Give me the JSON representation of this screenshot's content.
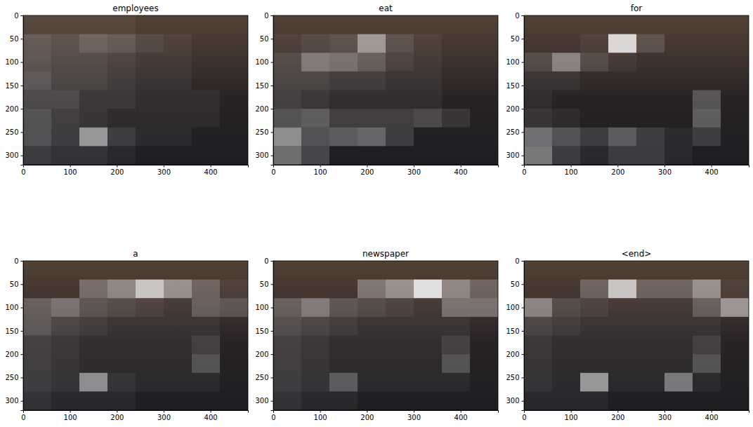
{
  "chart_data": [
    {
      "type": "heatmap",
      "title": "employees",
      "xlim": [
        0,
        480
      ],
      "ylim": [
        320,
        0
      ],
      "xticks": [
        0,
        100,
        200,
        300,
        400
      ],
      "yticks": [
        0,
        50,
        100,
        150,
        200,
        250,
        300
      ],
      "cells": [
        [
          0.1,
          0.1,
          0.1,
          0.1,
          0.05,
          0.05,
          0.05,
          0.05
        ],
        [
          0.25,
          0.2,
          0.3,
          0.25,
          0.15,
          0.1,
          0.05,
          0.05
        ],
        [
          0.25,
          0.2,
          0.2,
          0.15,
          0.1,
          0.1,
          0.05,
          0.05
        ],
        [
          0.3,
          0.2,
          0.2,
          0.15,
          0.1,
          0.1,
          0.05,
          0.05
        ],
        [
          0.25,
          0.25,
          0.15,
          0.15,
          0.1,
          0.1,
          0.1,
          0.05
        ],
        [
          0.3,
          0.2,
          0.15,
          0.1,
          0.1,
          0.1,
          0.1,
          0.05
        ],
        [
          0.3,
          0.2,
          0.65,
          0.2,
          0.1,
          0.1,
          0.05,
          0.05
        ],
        [
          0.2,
          0.15,
          0.15,
          0.1,
          0.05,
          0.05,
          0.05,
          0.05
        ]
      ]
    },
    {
      "type": "heatmap",
      "title": "eat",
      "xlim": [
        0,
        480
      ],
      "ylim": [
        320,
        0
      ],
      "xticks": [
        0,
        100,
        200,
        300,
        400
      ],
      "yticks": [
        0,
        50,
        100,
        150,
        200,
        250,
        300
      ],
      "cells": [
        [
          0.05,
          0.05,
          0.05,
          0.05,
          0.05,
          0.05,
          0.05,
          0.05
        ],
        [
          0.1,
          0.15,
          0.2,
          0.6,
          0.2,
          0.1,
          0.05,
          0.05
        ],
        [
          0.2,
          0.45,
          0.4,
          0.3,
          0.15,
          0.1,
          0.05,
          0.05
        ],
        [
          0.2,
          0.2,
          0.15,
          0.15,
          0.1,
          0.1,
          0.05,
          0.05
        ],
        [
          0.2,
          0.15,
          0.1,
          0.1,
          0.1,
          0.1,
          0.05,
          0.05
        ],
        [
          0.3,
          0.35,
          0.2,
          0.2,
          0.2,
          0.25,
          0.15,
          0.05
        ],
        [
          0.6,
          0.3,
          0.35,
          0.4,
          0.2,
          0.05,
          0.05,
          0.05
        ],
        [
          0.45,
          0.25,
          0.05,
          0.05,
          0.05,
          0.05,
          0.05,
          0.05
        ]
      ]
    },
    {
      "type": "heatmap",
      "title": "for",
      "xlim": [
        0,
        480
      ],
      "ylim": [
        320,
        0
      ],
      "xticks": [
        0,
        100,
        200,
        300,
        400
      ],
      "yticks": [
        0,
        50,
        100,
        150,
        200,
        250,
        300
      ],
      "cells": [
        [
          0.05,
          0.05,
          0.05,
          0.05,
          0.05,
          0.05,
          0.05,
          0.05
        ],
        [
          0.05,
          0.05,
          0.1,
          0.95,
          0.2,
          0.05,
          0.05,
          0.05
        ],
        [
          0.2,
          0.5,
          0.2,
          0.1,
          0.05,
          0.05,
          0.05,
          0.05
        ],
        [
          0.1,
          0.1,
          0.05,
          0.05,
          0.05,
          0.05,
          0.05,
          0.05
        ],
        [
          0.1,
          0.05,
          0.05,
          0.05,
          0.05,
          0.05,
          0.3,
          0.05
        ],
        [
          0.15,
          0.1,
          0.05,
          0.05,
          0.05,
          0.05,
          0.35,
          0.05
        ],
        [
          0.45,
          0.3,
          0.2,
          0.35,
          0.2,
          0.1,
          0.2,
          0.05
        ],
        [
          0.5,
          0.2,
          0.1,
          0.2,
          0.2,
          0.1,
          0.05,
          0.05
        ]
      ]
    },
    {
      "type": "heatmap",
      "title": "a",
      "xlim": [
        0,
        480
      ],
      "ylim": [
        320,
        0
      ],
      "xticks": [
        0,
        100,
        200,
        300,
        400
      ],
      "yticks": [
        0,
        50,
        100,
        150,
        200,
        250,
        300
      ],
      "cells": [
        [
          0.05,
          0.05,
          0.05,
          0.05,
          0.05,
          0.05,
          0.05,
          0.05
        ],
        [
          0.05,
          0.05,
          0.35,
          0.5,
          0.85,
          0.55,
          0.3,
          0.1
        ],
        [
          0.3,
          0.4,
          0.25,
          0.2,
          0.15,
          0.1,
          0.3,
          0.25
        ],
        [
          0.3,
          0.2,
          0.15,
          0.1,
          0.1,
          0.1,
          0.1,
          0.05
        ],
        [
          0.2,
          0.15,
          0.1,
          0.1,
          0.1,
          0.1,
          0.2,
          0.05
        ],
        [
          0.2,
          0.15,
          0.1,
          0.1,
          0.1,
          0.1,
          0.3,
          0.05
        ],
        [
          0.2,
          0.15,
          0.6,
          0.15,
          0.1,
          0.1,
          0.1,
          0.05
        ],
        [
          0.15,
          0.1,
          0.1,
          0.1,
          0.05,
          0.05,
          0.05,
          0.05
        ]
      ]
    },
    {
      "type": "heatmap",
      "title": "newspaper",
      "xlim": [
        0,
        480
      ],
      "ylim": [
        320,
        0
      ],
      "xticks": [
        0,
        100,
        200,
        300,
        400
      ],
      "yticks": [
        0,
        50,
        100,
        150,
        200,
        250,
        300
      ],
      "cells": [
        [
          0.05,
          0.05,
          0.05,
          0.05,
          0.05,
          0.05,
          0.05,
          0.05
        ],
        [
          0.05,
          0.05,
          0.05,
          0.4,
          0.55,
          1.0,
          0.5,
          0.3
        ],
        [
          0.3,
          0.45,
          0.25,
          0.2,
          0.15,
          0.1,
          0.4,
          0.4
        ],
        [
          0.25,
          0.2,
          0.15,
          0.1,
          0.1,
          0.1,
          0.1,
          0.05
        ],
        [
          0.2,
          0.15,
          0.1,
          0.1,
          0.1,
          0.1,
          0.2,
          0.05
        ],
        [
          0.2,
          0.15,
          0.1,
          0.1,
          0.1,
          0.1,
          0.3,
          0.05
        ],
        [
          0.2,
          0.15,
          0.35,
          0.1,
          0.1,
          0.1,
          0.1,
          0.05
        ],
        [
          0.15,
          0.1,
          0.1,
          0.05,
          0.05,
          0.05,
          0.05,
          0.05
        ]
      ]
    },
    {
      "type": "heatmap",
      "title": "<end>",
      "xlim": [
        0,
        480
      ],
      "ylim": [
        320,
        0
      ],
      "xticks": [
        0,
        100,
        200,
        300,
        400
      ],
      "yticks": [
        0,
        50,
        100,
        150,
        200,
        250,
        300
      ],
      "cells": [
        [
          0.05,
          0.05,
          0.05,
          0.05,
          0.05,
          0.05,
          0.05,
          0.05
        ],
        [
          0.05,
          0.05,
          0.3,
          0.85,
          0.3,
          0.3,
          0.55,
          0.1
        ],
        [
          0.5,
          0.2,
          0.15,
          0.1,
          0.1,
          0.1,
          0.3,
          0.6
        ],
        [
          0.2,
          0.15,
          0.1,
          0.1,
          0.1,
          0.1,
          0.1,
          0.05
        ],
        [
          0.15,
          0.1,
          0.1,
          0.1,
          0.1,
          0.1,
          0.2,
          0.05
        ],
        [
          0.15,
          0.1,
          0.1,
          0.1,
          0.1,
          0.1,
          0.3,
          0.05
        ],
        [
          0.15,
          0.1,
          0.65,
          0.1,
          0.1,
          0.5,
          0.1,
          0.05
        ],
        [
          0.1,
          0.1,
          0.1,
          0.05,
          0.05,
          0.05,
          0.05,
          0.05
        ]
      ]
    }
  ]
}
